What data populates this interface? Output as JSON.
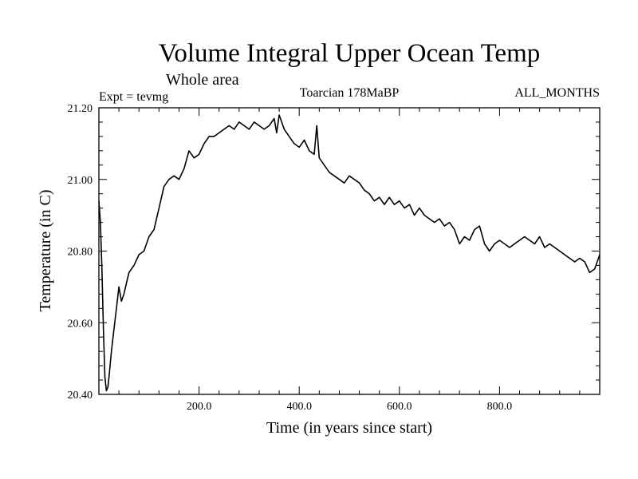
{
  "chart_data": {
    "type": "line",
    "title": "Volume Integral Upper Ocean Temp",
    "subtitle": "Whole area",
    "experiment_label": "Expt = tevmg",
    "period_label": "Toarcian 178MaBP",
    "months_label": "ALL_MONTHS",
    "xlabel": "Time (in years since start)",
    "ylabel": "Temperature (in C)",
    "xlim": [
      0,
      1000
    ],
    "ylim": [
      20.4,
      21.2
    ],
    "xticks": [
      200,
      400,
      600,
      800
    ],
    "xtick_labels": [
      "200.0",
      "400.0",
      "600.0",
      "800.0"
    ],
    "yticks": [
      20.4,
      20.6,
      20.8,
      21.0,
      21.2
    ],
    "ytick_labels": [
      "20.40",
      "20.60",
      "20.80",
      "21.00",
      "21.20"
    ],
    "grid": false,
    "series": [
      {
        "name": "Volume Integral Upper Ocean Temp",
        "x": [
          0,
          3,
          6,
          9,
          12,
          15,
          18,
          21,
          25,
          30,
          35,
          40,
          45,
          50,
          55,
          60,
          70,
          80,
          90,
          100,
          110,
          120,
          130,
          140,
          150,
          160,
          170,
          180,
          190,
          200,
          210,
          220,
          230,
          240,
          250,
          260,
          270,
          280,
          290,
          300,
          310,
          320,
          330,
          340,
          350,
          355,
          360,
          365,
          370,
          380,
          390,
          400,
          410,
          420,
          430,
          435,
          440,
          445,
          450,
          460,
          470,
          480,
          490,
          500,
          510,
          520,
          530,
          540,
          550,
          560,
          570,
          580,
          590,
          600,
          610,
          620,
          630,
          640,
          650,
          660,
          670,
          680,
          690,
          700,
          710,
          720,
          730,
          740,
          750,
          760,
          770,
          780,
          790,
          800,
          810,
          820,
          830,
          840,
          850,
          860,
          870,
          880,
          890,
          900,
          910,
          920,
          930,
          940,
          950,
          960,
          970,
          980,
          990,
          1000
        ],
        "values": [
          20.94,
          20.88,
          20.75,
          20.58,
          20.45,
          20.41,
          20.42,
          20.46,
          20.52,
          20.58,
          20.64,
          20.7,
          20.66,
          20.68,
          20.71,
          20.74,
          20.76,
          20.79,
          20.8,
          20.84,
          20.86,
          20.92,
          20.98,
          21.0,
          21.01,
          21.0,
          21.03,
          21.08,
          21.06,
          21.07,
          21.1,
          21.12,
          21.12,
          21.13,
          21.14,
          21.15,
          21.14,
          21.16,
          21.15,
          21.14,
          21.16,
          21.15,
          21.14,
          21.15,
          21.17,
          21.13,
          21.18,
          21.16,
          21.14,
          21.12,
          21.1,
          21.09,
          21.11,
          21.08,
          21.07,
          21.15,
          21.06,
          21.05,
          21.04,
          21.02,
          21.01,
          21.0,
          20.99,
          21.01,
          21.0,
          20.99,
          20.97,
          20.96,
          20.94,
          20.95,
          20.93,
          20.95,
          20.93,
          20.94,
          20.92,
          20.93,
          20.9,
          20.92,
          20.9,
          20.89,
          20.88,
          20.89,
          20.87,
          20.88,
          20.86,
          20.82,
          20.84,
          20.83,
          20.86,
          20.87,
          20.82,
          20.8,
          20.82,
          20.83,
          20.82,
          20.81,
          20.82,
          20.83,
          20.84,
          20.83,
          20.82,
          20.84,
          20.81,
          20.82,
          20.81,
          20.8,
          20.79,
          20.78,
          20.77,
          20.78,
          20.77,
          20.74,
          20.75,
          20.79
        ]
      }
    ]
  }
}
